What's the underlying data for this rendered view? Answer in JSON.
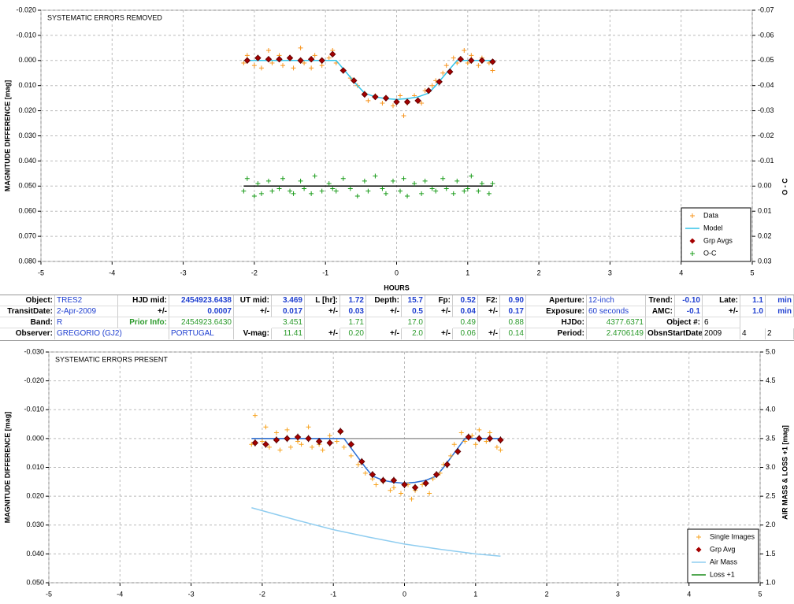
{
  "chart_data": [
    {
      "type": "scatter",
      "title": "SYSTEMATIC ERRORS REMOVED",
      "xlabel": "HOURS",
      "ylabel": "MAGNITUDE DIFFERENCE [mag]",
      "y2label": "O - C",
      "xlim": [
        -5,
        5
      ],
      "xticks": [
        -5,
        -4,
        -3,
        -2,
        -1,
        0,
        1,
        2,
        3,
        4,
        5
      ],
      "ylim": [
        -0.02,
        0.08
      ],
      "invert_y": true,
      "yticks": [
        {
          "value": -0.02,
          "label": "-0.020"
        },
        {
          "value": -0.01,
          "label": "-0.010"
        },
        {
          "value": 0,
          "label": "0.000"
        },
        {
          "value": 0.01,
          "label": "0.010"
        },
        {
          "value": 0.02,
          "label": "0.020"
        },
        {
          "value": 0.03,
          "label": "0.030"
        },
        {
          "value": 0.04,
          "label": "0.040"
        },
        {
          "value": 0.05,
          "label": "0.050"
        },
        {
          "value": 0.06,
          "label": "0.060"
        },
        {
          "value": 0.07,
          "label": "0.070"
        },
        {
          "value": 0.08,
          "label": "0.080"
        }
      ],
      "y2lim": [
        -0.07,
        0.03
      ],
      "invert_y2": true,
      "y2ticks": [
        -0.07,
        -0.06,
        -0.05,
        -0.04,
        -0.03,
        -0.02,
        -0.01,
        {
          "value": 0,
          "label": "0.00"
        },
        0.01,
        0.02,
        0.03
      ],
      "grid": true,
      "legend": "lower right",
      "series": [
        {
          "name": "Data",
          "color": "#f7941d",
          "marker": "plus",
          "x": [
            -2.15,
            -2.1,
            -2.0,
            -1.95,
            -1.9,
            -1.8,
            -1.75,
            -1.65,
            -1.6,
            -1.5,
            -1.45,
            -1.35,
            -1.3,
            -1.2,
            -1.15,
            -1.05,
            -0.95,
            -0.9,
            -0.85,
            -0.75,
            -0.65,
            -0.55,
            -0.45,
            -0.4,
            -0.3,
            -0.2,
            -0.15,
            -0.05,
            0.05,
            0.1,
            0.15,
            0.25,
            0.35,
            0.4,
            0.5,
            0.55,
            0.65,
            0.7,
            0.8,
            0.85,
            0.95,
            1.0,
            1.05,
            1.15,
            1.2,
            1.3,
            1.35
          ],
          "values": [
            0.001,
            -0.002,
            0.002,
            -0.001,
            0.003,
            -0.004,
            0.001,
            -0.002,
            0.002,
            -0.001,
            0.003,
            -0.005,
            0.001,
            0.003,
            -0.002,
            0.002,
            -0.001,
            -0.004,
            0.001,
            0.004,
            0.007,
            0.01,
            0.013,
            0.016,
            0.014,
            0.017,
            0.015,
            0.018,
            0.014,
            0.022,
            0.017,
            0.014,
            0.017,
            0.012,
            0.01,
            0.008,
            0.005,
            0.002,
            -0.001,
            0.001,
            -0.004,
            0.001,
            -0.002,
            0.002,
            -0.001,
            0.001,
            0.004
          ]
        },
        {
          "name": "Model",
          "color": "#33c3e8",
          "marker": "line",
          "x": [
            -2.15,
            -0.85,
            -0.7,
            -0.55,
            -0.45,
            -0.3,
            -0.15,
            0,
            0.15,
            0.3,
            0.45,
            0.55,
            0.7,
            0.85,
            1.35
          ],
          "values": [
            0,
            0,
            0.005,
            0.01,
            0.013,
            0.0145,
            0.0152,
            0.0155,
            0.0152,
            0.0145,
            0.013,
            0.01,
            0.005,
            0,
            0
          ]
        },
        {
          "name": "Grp Avgs",
          "color": "#a50000",
          "marker": "diamond",
          "x": [
            -2.1,
            -1.95,
            -1.8,
            -1.65,
            -1.5,
            -1.35,
            -1.2,
            -1.05,
            -0.9,
            -0.75,
            -0.6,
            -0.45,
            -0.3,
            -0.15,
            0,
            0.15,
            0.3,
            0.45,
            0.6,
            0.75,
            0.9,
            1.05,
            1.2,
            1.35
          ],
          "values": [
            0,
            -0.001,
            -0.0005,
            -0.0005,
            -0.001,
            0,
            -0.0005,
            0,
            -0.0025,
            0.004,
            0.008,
            0.0135,
            0.0145,
            0.015,
            0.0165,
            0.0165,
            0.016,
            0.012,
            0.0085,
            0.0045,
            -0.0005,
            0,
            0,
            0.0005
          ],
          "errors": [
            0.0012,
            0.0012,
            0.0012,
            0.0012,
            0.0012,
            0.0012,
            0.0012,
            0.0012,
            0.0012,
            0.0012,
            0.0012,
            0.0012,
            0.0012,
            0.0012,
            0.0012,
            0.0012,
            0.0012,
            0.0012,
            0.0012,
            0.0012,
            0.0012,
            0.0012,
            0.0012,
            0.0012
          ]
        },
        {
          "name": "O-C",
          "color": "#1a9c1a",
          "marker": "plus",
          "axis": "y2",
          "x": [
            -2.15,
            -2.1,
            -2.0,
            -1.95,
            -1.9,
            -1.8,
            -1.75,
            -1.65,
            -1.6,
            -1.5,
            -1.45,
            -1.35,
            -1.3,
            -1.2,
            -1.15,
            -1.05,
            -0.95,
            -0.9,
            -0.85,
            -0.75,
            -0.65,
            -0.55,
            -0.45,
            -0.4,
            -0.3,
            -0.2,
            -0.15,
            -0.05,
            0.05,
            0.1,
            0.15,
            0.25,
            0.35,
            0.4,
            0.5,
            0.55,
            0.65,
            0.7,
            0.8,
            0.85,
            0.95,
            1.0,
            1.05,
            1.15,
            1.2,
            1.3,
            1.35
          ],
          "values": [
            0.002,
            -0.003,
            0.004,
            -0.001,
            0.003,
            -0.002,
            0.002,
            0.001,
            -0.003,
            0.002,
            0.003,
            -0.002,
            0.001,
            0.003,
            -0.004,
            0.002,
            -0.001,
            0.001,
            0.002,
            -0.003,
            0.001,
            0.004,
            -0.002,
            0.002,
            -0.004,
            0.001,
            0.003,
            -0.002,
            0.002,
            -0.003,
            0.004,
            -0.001,
            0.003,
            -0.002,
            0.001,
            0.002,
            -0.003,
            0.001,
            0.003,
            -0.002,
            0.002,
            0.001,
            -0.004,
            0.002,
            -0.001,
            0.003,
            -0.001
          ]
        }
      ],
      "lines": [
        {
          "color": "#000000",
          "axis": "y2",
          "x": [
            -2.15,
            1.35
          ],
          "values": [
            0,
            0
          ]
        }
      ]
    },
    {
      "type": "scatter",
      "title": "SYSTEMATIC ERRORS PRESENT",
      "ylabel": "MAGNITUDE DIFFERENCE [mag]",
      "y2label": "AIR MASS & LOSS +1 [mag]",
      "xlim": [
        -5,
        5
      ],
      "xticks": [
        -5,
        -4,
        -3,
        -2,
        -1,
        0,
        1,
        2,
        3,
        4,
        5
      ],
      "ylim": [
        -0.03,
        0.05
      ],
      "invert_y": true,
      "yticks": [
        {
          "value": -0.03,
          "label": "-0.030"
        },
        {
          "value": -0.02,
          "label": "-0.020"
        },
        {
          "value": -0.01,
          "label": "-0.010"
        },
        {
          "value": 0,
          "label": "0.000"
        },
        {
          "value": 0.01,
          "label": "0.010"
        },
        {
          "value": 0.02,
          "label": "0.020"
        },
        {
          "value": 0.03,
          "label": "0.030"
        },
        {
          "value": 0.04,
          "label": "0.040"
        },
        {
          "value": 0.05,
          "label": "0.050"
        }
      ],
      "y2lim": [
        1,
        5
      ],
      "invert_y2": false,
      "y2ticks": [
        {
          "value": 1,
          "label": "1.0"
        },
        1.5,
        {
          "value": 2,
          "label": "2.0"
        },
        2.5,
        {
          "value": 3,
          "label": "3.0"
        },
        3.5,
        {
          "value": 4,
          "label": "4.0"
        },
        4.5,
        {
          "value": 5,
          "label": "5.0"
        }
      ],
      "grid": true,
      "legend": "lower right",
      "series": [
        {
          "name": "Single Images",
          "color": "#f7a21d",
          "marker": "plus",
          "x": [
            -2.15,
            -2.1,
            -2.0,
            -1.95,
            -1.9,
            -1.8,
            -1.75,
            -1.65,
            -1.6,
            -1.5,
            -1.45,
            -1.35,
            -1.3,
            -1.2,
            -1.15,
            -1.05,
            -0.95,
            -0.9,
            -0.85,
            -0.75,
            -0.65,
            -0.55,
            -0.45,
            -0.4,
            -0.3,
            -0.2,
            -0.15,
            -0.05,
            0.05,
            0.1,
            0.15,
            0.25,
            0.35,
            0.4,
            0.5,
            0.55,
            0.65,
            0.7,
            0.8,
            0.85,
            0.95,
            1.0,
            1.05,
            1.15,
            1.2,
            1.3,
            1.35
          ],
          "values": [
            0.002,
            -0.008,
            0.001,
            -0.004,
            0.003,
            -0.002,
            0.004,
            -0.003,
            0.003,
            0.001,
            0.002,
            -0.004,
            0.003,
            0.002,
            0.004,
            -0.001,
            0.001,
            -0.002,
            0.003,
            0.006,
            0.009,
            0.012,
            0.014,
            0.016,
            0.015,
            0.018,
            0.017,
            0.019,
            0.016,
            0.021,
            0.018,
            0.016,
            0.019,
            0.014,
            0.012,
            0.009,
            0.006,
            0.002,
            -0.002,
            0.001,
            -0.001,
            0.002,
            -0.003,
            0.001,
            -0.002,
            0.003,
            0.004
          ]
        },
        {
          "name": "Grp Avg",
          "color": "#a50000",
          "marker": "diamond",
          "x": [
            -2.1,
            -1.95,
            -1.8,
            -1.65,
            -1.5,
            -1.35,
            -1.2,
            -1.05,
            -0.9,
            -0.75,
            -0.6,
            -0.45,
            -0.3,
            -0.15,
            0,
            0.15,
            0.3,
            0.45,
            0.6,
            0.75,
            0.9,
            1.05,
            1.2,
            1.35
          ],
          "values": [
            0.0015,
            0.002,
            0.0005,
            0,
            -0.0005,
            0,
            0.001,
            0.0015,
            -0.0025,
            0.002,
            0.008,
            0.0125,
            0.0145,
            0.0145,
            0.016,
            0.017,
            0.0155,
            0.0125,
            0.009,
            0.0045,
            -0.0005,
            0,
            0,
            0.0005
          ],
          "errors": [
            0.0012,
            0.0012,
            0.0012,
            0.0012,
            0.0012,
            0.0012,
            0.0012,
            0.0012,
            0.0012,
            0.0012,
            0.0012,
            0.0012,
            0.0012,
            0.0012,
            0.0012,
            0.0012,
            0.0012,
            0.0012,
            0.0012,
            0.0012,
            0.0012,
            0.0012,
            0.0012,
            0.0012
          ]
        },
        {
          "name": "Air Mass",
          "color": "#8fcdf0",
          "marker": "line",
          "axis": "y2",
          "x": [
            -2.15,
            -1.5,
            -1,
            -0.5,
            0,
            0.5,
            1,
            1.35
          ],
          "values": [
            2.3,
            2.08,
            1.92,
            1.79,
            1.67,
            1.58,
            1.5,
            1.46
          ]
        },
        {
          "name": "Loss +1",
          "color": "#1a8c1a",
          "marker": "line",
          "axis": "y2",
          "x": [],
          "values": []
        }
      ],
      "lines": [
        {
          "color": "#999999",
          "x": [
            -2.15,
            1.35
          ],
          "values": [
            0,
            0
          ]
        },
        {
          "color": "#2a6fd6",
          "x": [
            -2.15,
            -0.85,
            -0.7,
            -0.55,
            -0.45,
            -0.3,
            -0.15,
            0,
            0.15,
            0.3,
            0.45,
            0.55,
            0.7,
            0.85,
            1.35
          ],
          "values": [
            0,
            0,
            0.005,
            0.01,
            0.013,
            0.0145,
            0.0152,
            0.0155,
            0.0152,
            0.0145,
            0.013,
            0.01,
            0.005,
            0,
            0
          ]
        }
      ]
    }
  ],
  "table": {
    "rows": [
      [
        "Object:",
        "TRES2",
        "HJD mid:",
        "2454923.6438",
        "UT mid:",
        "3.469",
        "L [hr]:",
        "1.72",
        "Depth:",
        "15.7",
        "Fp:",
        "0.52",
        "F2:",
        "0.90",
        "Aperture:",
        "12-inch",
        "Trend:",
        "-0.10",
        "Late:",
        "1.1",
        "min"
      ],
      [
        "TransitDate:",
        "2-Apr-2009",
        "+/-",
        "0.0007",
        "+/-",
        "0.017",
        "+/-",
        "0.03",
        "+/-",
        "0.5",
        "+/-",
        "0.04",
        "+/-",
        "0.17",
        "Exposure:",
        "60 seconds",
        "AMC:",
        "-0.1",
        "+/-",
        "1.0",
        "min"
      ],
      [
        "Band:",
        "R",
        "Prior Info:",
        "2454923.6430",
        "3.451",
        "1.71",
        "17.0",
        "0.49",
        "0.88",
        "HJDo:",
        "4377.6371",
        "Object #:",
        "6"
      ],
      [
        "Observer:",
        "GREGORIO (GJ2)",
        "PORTUGAL",
        "V-mag:",
        "11.41",
        "+/-",
        "0.20",
        "+/-",
        "2.0",
        "+/-",
        "0.06",
        "+/-",
        "0.14",
        "Period:",
        "2.4706149",
        "ObsnStartDate:",
        "2009",
        "4",
        "2"
      ]
    ]
  }
}
